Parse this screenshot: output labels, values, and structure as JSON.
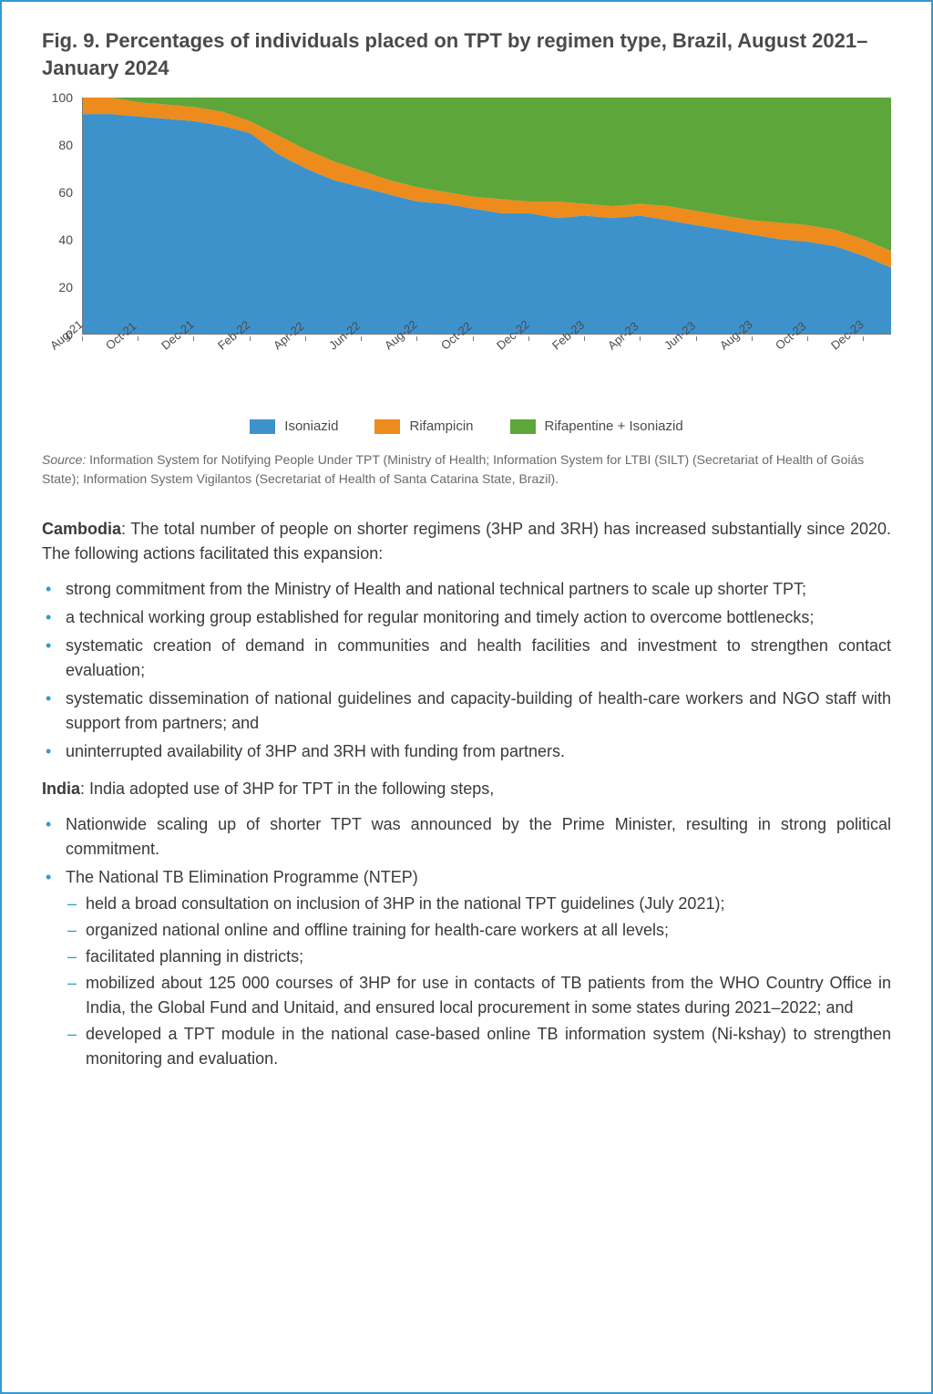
{
  "figure": {
    "title": "Fig. 9. Percentages of individuals placed on TPT by regimen type, Brazil, August 2021–January 2024",
    "title_color": "#4a4a4a",
    "chart": {
      "type": "stacked-area",
      "ylim": [
        0,
        100
      ],
      "yticks": [
        0,
        20,
        40,
        60,
        80,
        100
      ],
      "ytick_color": "#4a4a4a",
      "axis_color": "#7a7a7a",
      "x_labels": [
        "Aug-21",
        "Oct-21",
        "Dec-21",
        "Feb-22",
        "Apr-22",
        "Jun-22",
        "Aug-22",
        "Oct-22",
        "Dec-22",
        "Feb-23",
        "Apr-23",
        "Jun-23",
        "Aug-23",
        "Oct-23",
        "Dec-23"
      ],
      "x_label_step": 2,
      "n_points": 30,
      "series": [
        {
          "name": "Isoniazid",
          "color": "#3e92cc",
          "values": [
            93,
            93,
            92,
            91,
            90,
            88,
            85,
            76,
            70,
            65,
            62,
            59,
            56,
            55,
            53,
            51,
            51,
            49,
            50,
            49,
            50,
            48,
            46,
            44,
            42,
            40,
            39,
            37,
            33,
            28
          ]
        },
        {
          "name": "Rifampicin",
          "color": "#ed8b1c",
          "values": [
            7,
            7,
            6,
            6,
            6,
            6,
            5,
            8,
            8,
            8,
            7,
            6,
            6,
            5,
            5,
            6,
            5,
            7,
            5,
            5,
            5,
            6,
            6,
            6,
            6,
            7,
            7,
            7,
            7,
            7
          ]
        },
        {
          "name": "Rifapentine + Isoniazid",
          "color": "#5da639",
          "values": [
            0,
            0,
            2,
            3,
            4,
            6,
            10,
            16,
            22,
            27,
            31,
            35,
            38,
            40,
            42,
            43,
            44,
            44,
            45,
            46,
            45,
            46,
            48,
            50,
            52,
            53,
            54,
            56,
            60,
            65
          ]
        }
      ]
    },
    "legend": [
      {
        "label": "Isoniazid",
        "color": "#3e92cc"
      },
      {
        "label": "Rifampicin",
        "color": "#ed8b1c"
      },
      {
        "label": "Rifapentine + Isoniazid",
        "color": "#5da639"
      }
    ],
    "source_label": "Source:",
    "source_text": " Information System for Notifying People Under TPT (Ministry of Health; Information System for LTBI (SILT) (Secretariat of Health of Goiás State); Information System Vigilantos (Secretariat of Health of Santa Catarina State, Brazil)."
  },
  "body": {
    "cambodia": {
      "country": "Cambodia",
      "intro": ": The total number of people on shorter regimens (3HP and 3RH) has increased substantially since 2020. The following actions facilitated this expansion:",
      "bullets": [
        "strong commitment from the Ministry of Health and national technical partners to scale up shorter TPT;",
        "a technical working group established for regular monitoring and timely action to overcome bottlenecks;",
        "systematic creation of demand in communities and health facilities and investment to strengthen contact evaluation;",
        "systematic dissemination of national guidelines and capacity-building of health-care workers and NGO staff with support from partners; and",
        "uninterrupted availability of 3HP and 3RH with funding from partners."
      ]
    },
    "india": {
      "country": "India",
      "intro": ": India adopted use of 3HP for TPT in the following steps,",
      "bullets": [
        {
          "text": "Nationwide scaling up of shorter TPT was announced by the Prime Minister, resulting in strong political commitment."
        },
        {
          "text": "The National TB Elimination Programme (NTEP)",
          "sub": [
            "held a broad consultation on inclusion of 3HP in the national TPT guidelines (July 2021);",
            "organized national online and offline training for health-care workers at all levels;",
            "facilitated planning in districts;",
            "mobilized about 125 000 courses of 3HP for use in contacts of TB patients from the WHO Country Office in India, the Global Fund and Unitaid, and ensured local procurement in some states during 2021–2022; and",
            "developed a TPT module in the national case-based online TB information system (Ni-kshay) to strengthen monitoring and evaluation."
          ]
        }
      ]
    }
  }
}
